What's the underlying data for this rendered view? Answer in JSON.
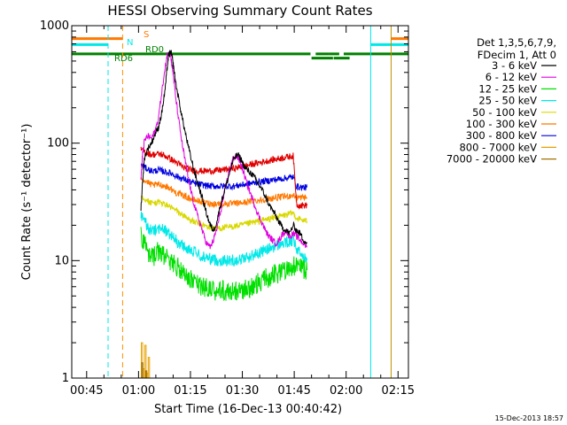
{
  "chart_data": {
    "type": "line",
    "title": "HESSI Observing Summary Count Rates",
    "xlabel": "Start Time (16-Dec-13 00:40:42)",
    "ylabel": "Count Rate (s⁻¹ detector⁻¹)",
    "x_unit": "minutes after 00:40:42",
    "xlim": [
      0,
      97.3
    ],
    "ylim": [
      1,
      1000
    ],
    "y_scale": "log",
    "x_ticks": [
      {
        "x": 4.3,
        "label": "00:45"
      },
      {
        "x": 19.3,
        "label": "01:00"
      },
      {
        "x": 34.3,
        "label": "01:15"
      },
      {
        "x": 49.3,
        "label": "01:30"
      },
      {
        "x": 64.3,
        "label": "01:45"
      },
      {
        "x": 79.3,
        "label": "02:00"
      },
      {
        "x": 94.3,
        "label": "02:15"
      }
    ],
    "y_ticks": [
      {
        "y": 1,
        "label": "1"
      },
      {
        "y": 10,
        "label": "10"
      },
      {
        "y": 100,
        "label": "100"
      },
      {
        "y": 1000,
        "label": "1000"
      }
    ],
    "legend": {
      "position": "right",
      "header": [
        "Det 1,3,5,6,7,9,",
        "FDecim 1, Att 0"
      ]
    },
    "series": [
      {
        "name": "3 - 6 keV",
        "color": "#000000",
        "x": [
          20,
          20.5,
          21,
          22,
          23,
          24,
          25,
          26,
          27,
          27.5,
          28,
          28.6,
          29,
          29.5,
          30,
          31,
          32,
          33,
          34,
          35,
          36,
          37,
          38,
          39,
          40,
          41,
          42,
          43,
          44,
          45,
          46,
          47,
          48,
          49,
          50,
          51,
          52,
          53,
          54,
          55,
          56,
          57,
          58,
          59,
          60,
          61,
          62,
          63,
          64,
          65,
          66,
          67,
          68
        ],
        "y": [
          28,
          48,
          75,
          90,
          100,
          118,
          135,
          180,
          290,
          420,
          560,
          600,
          540,
          430,
          330,
          230,
          160,
          115,
          85,
          64,
          50,
          40,
          32,
          25,
          20,
          18,
          22,
          30,
          38,
          48,
          62,
          75,
          80,
          72,
          62,
          58,
          55,
          50,
          45,
          40,
          35,
          30,
          27,
          24,
          21,
          19,
          18,
          17,
          20,
          18,
          17,
          15,
          14
        ]
      },
      {
        "name": "6 - 12 keV",
        "color": "#e000e0",
        "x": [
          20,
          20.5,
          21,
          22,
          23,
          24,
          25,
          26,
          27,
          27.5,
          28,
          28.6,
          29,
          29.5,
          30,
          31,
          32,
          33,
          34,
          35,
          36,
          37,
          38,
          39,
          40,
          41,
          42,
          43,
          44,
          45,
          46,
          47,
          48,
          49,
          50,
          51,
          52,
          53,
          54,
          55,
          56,
          57,
          58,
          59,
          60,
          61,
          62,
          63,
          64,
          65,
          66,
          67,
          68
        ],
        "y": [
          50,
          80,
          105,
          115,
          110,
          125,
          160,
          270,
          430,
          550,
          600,
          560,
          450,
          350,
          250,
          150,
          95,
          65,
          45,
          33,
          26,
          21,
          17,
          14,
          13,
          15,
          19,
          26,
          36,
          50,
          65,
          78,
          75,
          65,
          52,
          42,
          35,
          29,
          24,
          21,
          18,
          16,
          15,
          14,
          15,
          17,
          18,
          16,
          17,
          16,
          15,
          14,
          13
        ]
      },
      {
        "name": "12 - 25 keV",
        "color": "#00e000",
        "x": [
          20,
          21,
          22,
          23,
          24,
          25,
          26,
          27,
          28,
          29,
          30,
          31,
          32,
          33,
          34,
          35,
          36,
          37,
          38,
          39,
          40,
          41,
          42,
          43,
          44,
          45,
          46,
          47,
          48,
          49,
          50,
          51,
          52,
          53,
          54,
          55,
          56,
          57,
          58,
          59,
          60,
          61,
          62,
          63,
          64,
          65,
          66,
          67,
          68
        ],
        "y": [
          17,
          14,
          12,
          11,
          11,
          12,
          11.5,
          11,
          10,
          9.5,
          9,
          8.5,
          8,
          7.5,
          7,
          6.8,
          6.5,
          6.2,
          6,
          5.8,
          5.6,
          5.5,
          5.5,
          5.5,
          5.5,
          5.5,
          5.5,
          5.5,
          5.6,
          5.6,
          5.7,
          5.8,
          6,
          6.2,
          6.5,
          6.8,
          7,
          7.2,
          7.5,
          7.7,
          8,
          8.3,
          8.6,
          8.8,
          9,
          9,
          8.8,
          8.5,
          8.3
        ]
      },
      {
        "name": "25 - 50 keV",
        "color": "#00e8e8",
        "x": [
          20,
          21,
          22,
          23,
          24,
          25,
          26,
          27,
          28,
          29,
          30,
          31,
          32,
          33,
          34,
          35,
          36,
          37,
          38,
          39,
          40,
          41,
          42,
          43,
          44,
          45,
          46,
          47,
          48,
          49,
          50,
          51,
          52,
          53,
          54,
          55,
          56,
          57,
          58,
          59,
          60,
          61,
          62,
          63,
          64,
          65,
          66,
          67,
          68
        ],
        "y": [
          25,
          22,
          19,
          18,
          18,
          19,
          18.5,
          18,
          17,
          16,
          15,
          14,
          13.5,
          13,
          12.5,
          12,
          11.5,
          11,
          10.8,
          10.6,
          10.4,
          10.2,
          10,
          10,
          10,
          10,
          10,
          10,
          10.2,
          10.3,
          10.5,
          10.7,
          11,
          11.3,
          11.6,
          12,
          12.3,
          12.6,
          13,
          13.3,
          13.6,
          14,
          14.2,
          14.5,
          14.8,
          12.5,
          11.5,
          11,
          10.5
        ]
      },
      {
        "name": "50 - 100 keV",
        "color": "#d8d800",
        "x": [
          20,
          21,
          22,
          23,
          24,
          25,
          26,
          27,
          28,
          29,
          30,
          31,
          32,
          33,
          34,
          35,
          36,
          37,
          38,
          39,
          40,
          41,
          42,
          43,
          44,
          45,
          46,
          47,
          48,
          49,
          50,
          51,
          52,
          53,
          54,
          55,
          56,
          57,
          58,
          59,
          60,
          61,
          62,
          63,
          64,
          65,
          66,
          67,
          68
        ],
        "y": [
          36,
          34,
          32,
          31,
          31,
          31.5,
          31,
          30,
          29,
          28,
          27,
          25.5,
          24.5,
          23.5,
          22.5,
          21.5,
          21,
          20.5,
          20,
          19.5,
          19,
          19,
          19,
          19,
          19,
          19.2,
          19.4,
          19.6,
          19.8,
          20,
          20.3,
          20.6,
          21,
          21.3,
          21.6,
          22,
          22.3,
          22.6,
          23,
          23.4,
          23.8,
          24.2,
          24.5,
          25,
          25.5,
          23,
          22.5,
          22,
          21.5
        ]
      },
      {
        "name": "100 - 300 keV",
        "color": "#ff7800",
        "x": [
          20,
          21,
          22,
          23,
          24,
          25,
          26,
          27,
          28,
          29,
          30,
          31,
          32,
          33,
          34,
          35,
          36,
          37,
          38,
          39,
          40,
          41,
          42,
          43,
          44,
          45,
          46,
          47,
          48,
          49,
          50,
          51,
          52,
          53,
          54,
          55,
          56,
          57,
          58,
          59,
          60,
          61,
          62,
          63,
          64,
          65,
          66,
          67,
          68
        ],
        "y": [
          52,
          48,
          46,
          44,
          44,
          44.5,
          44,
          43,
          42,
          40,
          38,
          37,
          36,
          35,
          34,
          33,
          32.5,
          32,
          31.5,
          31,
          30.5,
          30.5,
          30.5,
          30.5,
          30.5,
          30.5,
          30.5,
          30.5,
          30.8,
          31,
          31.3,
          31.6,
          32,
          32.3,
          32.6,
          33,
          33.3,
          33.6,
          34,
          34.3,
          34.6,
          35,
          35.2,
          35.5,
          36,
          34.5,
          34.5,
          34.5,
          34.5
        ]
      },
      {
        "name": "300 - 800 keV",
        "color": "#0000e0",
        "x": [
          20,
          21,
          22,
          23,
          24,
          25,
          26,
          27,
          28,
          29,
          30,
          31,
          32,
          33,
          34,
          35,
          36,
          37,
          38,
          39,
          40,
          41,
          42,
          43,
          44,
          45,
          46,
          47,
          48,
          49,
          50,
          51,
          52,
          53,
          54,
          55,
          56,
          57,
          58,
          59,
          60,
          61,
          62,
          63,
          64,
          65,
          66,
          67,
          68
        ],
        "y": [
          65,
          62,
          60,
          58,
          58,
          59,
          58,
          57,
          56,
          55,
          53,
          51,
          50,
          48.5,
          47,
          46,
          45,
          44.5,
          44,
          43.5,
          43,
          43,
          43,
          43,
          43,
          43,
          43,
          43,
          43.5,
          44,
          44.5,
          45,
          45.5,
          46,
          46.5,
          47,
          47.5,
          48,
          48.5,
          49,
          49.5,
          50,
          50.5,
          51,
          51.5,
          43,
          42,
          42,
          42
        ]
      },
      {
        "name": "800 - 7000 keV",
        "color": "#e8a000",
        "x": [
          20.1,
          20.7,
          21.1,
          21.6,
          22.1
        ],
        "y": [
          2,
          1.2,
          1.9,
          1.1,
          1.5
        ]
      },
      {
        "name": "7000 - 20000 keV",
        "color": "#a07000",
        "x": [
          20.2,
          21.3
        ],
        "y": [
          1.35,
          1.15
        ]
      },
      {
        "name": "red (unlabeled)",
        "color": "#e00000",
        "x": [
          20,
          21,
          22,
          23,
          24,
          25,
          26,
          27,
          28,
          29,
          30,
          31,
          32,
          33,
          34,
          35,
          36,
          37,
          38,
          39,
          40,
          41,
          42,
          43,
          44,
          45,
          46,
          47,
          48,
          49,
          50,
          51,
          52,
          53,
          54,
          55,
          56,
          57,
          58,
          59,
          60,
          61,
          62,
          63,
          64,
          65,
          66,
          67,
          68
        ],
        "y": [
          88,
          85,
          82,
          80,
          80,
          81,
          80,
          78,
          75,
          72,
          69,
          66,
          63,
          61,
          60,
          59,
          58.5,
          58,
          58,
          58,
          58,
          58,
          58.5,
          59,
          59.5,
          60,
          60.5,
          61,
          62,
          63,
          64,
          65,
          66,
          67,
          68,
          69,
          70,
          71,
          72,
          73,
          74,
          75,
          76,
          77,
          78,
          30,
          29.5,
          29.5,
          29.5
        ]
      }
    ],
    "vlines": [
      {
        "x": 10.5,
        "color": "#00e8e8",
        "style": "dashed"
      },
      {
        "x": 14.7,
        "color": "#ff9000",
        "style": "dashed"
      },
      {
        "x": 86.4,
        "color": "#00e8e8",
        "style": "solid"
      },
      {
        "x": 92.3,
        "color": "#c09000",
        "style": "solid"
      },
      {
        "x": 97.3,
        "color": "#00e8e8",
        "style": "dashed"
      }
    ],
    "flag_bars": [
      {
        "label": "S",
        "color": "#ff7800",
        "y": 775,
        "segments": [
          [
            0,
            14.7
          ],
          [
            92.3,
            97.3
          ]
        ]
      },
      {
        "label": "N",
        "color": "#00e8e8",
        "y": 690,
        "segments": [
          [
            0,
            10.5
          ],
          [
            86.4,
            97.3
          ]
        ]
      },
      {
        "label": "RD0",
        "color": "#008000",
        "y": 575,
        "segments": [
          [
            0,
            69
          ],
          [
            70.5,
            74.5
          ],
          [
            74.5,
            77.3
          ],
          [
            78.6,
            97.3
          ]
        ]
      },
      {
        "label": "RD6",
        "color": "#008000",
        "y": 530,
        "segments": [
          [
            69.3,
            75.5
          ],
          [
            75.7,
            80.3
          ]
        ]
      }
    ],
    "timestamp": "15-Dec-2013 18:57"
  }
}
